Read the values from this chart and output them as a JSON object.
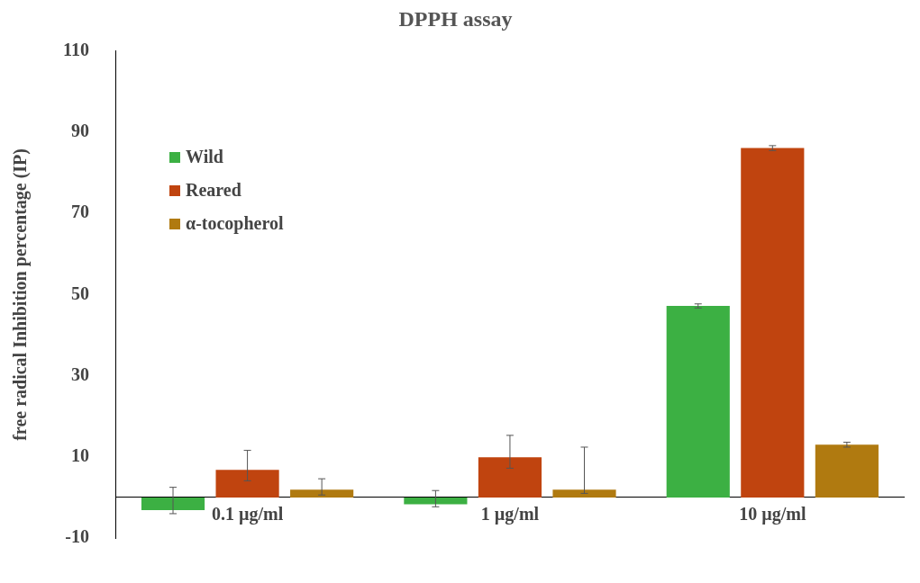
{
  "chart_data": {
    "type": "bar",
    "title": "DPPH assay",
    "ylabel": "free radical Inhibition percentage (IP)",
    "categories": [
      "0.1 µg/ml",
      "1 µg/ml",
      "10 µg/ml"
    ],
    "series": [
      {
        "name": "Wild",
        "color": "#3cb043",
        "values": [
          -3.1,
          -1.7,
          47.2
        ],
        "errors": [
          [
            -4.0,
            2.5
          ],
          [
            -2.3,
            1.7
          ],
          [
            46.7,
            47.7
          ]
        ]
      },
      {
        "name": "Reared",
        "color": "#c0440f",
        "values": [
          6.8,
          9.9,
          86.1
        ],
        "errors": [
          [
            4.1,
            11.6
          ],
          [
            7.2,
            15.3
          ],
          [
            85.5,
            86.7
          ]
        ]
      },
      {
        "name": "α-tocopherol",
        "color": "#b07a10",
        "values": [
          1.9,
          1.9,
          13.0
        ],
        "errors": [
          [
            0.6,
            4.6
          ],
          [
            1.0,
            12.4
          ],
          [
            12.4,
            13.6
          ]
        ]
      }
    ],
    "ylim": [
      -10,
      110
    ],
    "yticks": [
      -10,
      10,
      30,
      50,
      70,
      90,
      110
    ],
    "legend": "top left"
  }
}
